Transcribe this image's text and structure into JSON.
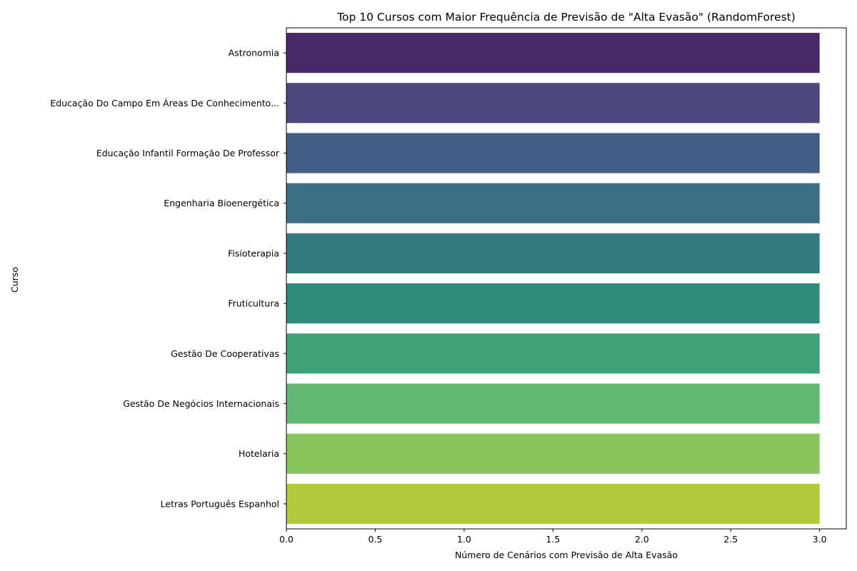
{
  "chart_data": {
    "type": "bar",
    "orientation": "horizontal",
    "title": "Top 10 Cursos com Maior Frequência de Previsão de \"Alta Evasão\" (RandomForest)",
    "xlabel": "Número de Cenários com Previsão de Alta Evasão",
    "ylabel": "Curso",
    "categories": [
      "Astronomia",
      "Educação Do Campo Em Áreas De Conhecimento...",
      "Educação Infantil Formação De Professor",
      "Engenharia Bioenergética",
      "Fisioterapia",
      "Fruticultura",
      "Gestão De Cooperativas",
      "Gestão De Negócios Internacionais",
      "Hotelaria",
      "Letras Português Espanhol"
    ],
    "values": [
      3,
      3,
      3,
      3,
      3,
      3,
      3,
      3,
      3,
      3
    ],
    "xlim": [
      0,
      3.15
    ],
    "xticks": [
      "0.0",
      "0.5",
      "1.0",
      "1.5",
      "2.0",
      "2.5",
      "3.0"
    ],
    "grid": false,
    "colors": [
      "#482a6b",
      "#4a487e",
      "#425e86",
      "#3a6f84",
      "#337b81",
      "#2f8c7d",
      "#3ea276",
      "#62b870",
      "#89c55d",
      "#b1ca3a"
    ]
  }
}
